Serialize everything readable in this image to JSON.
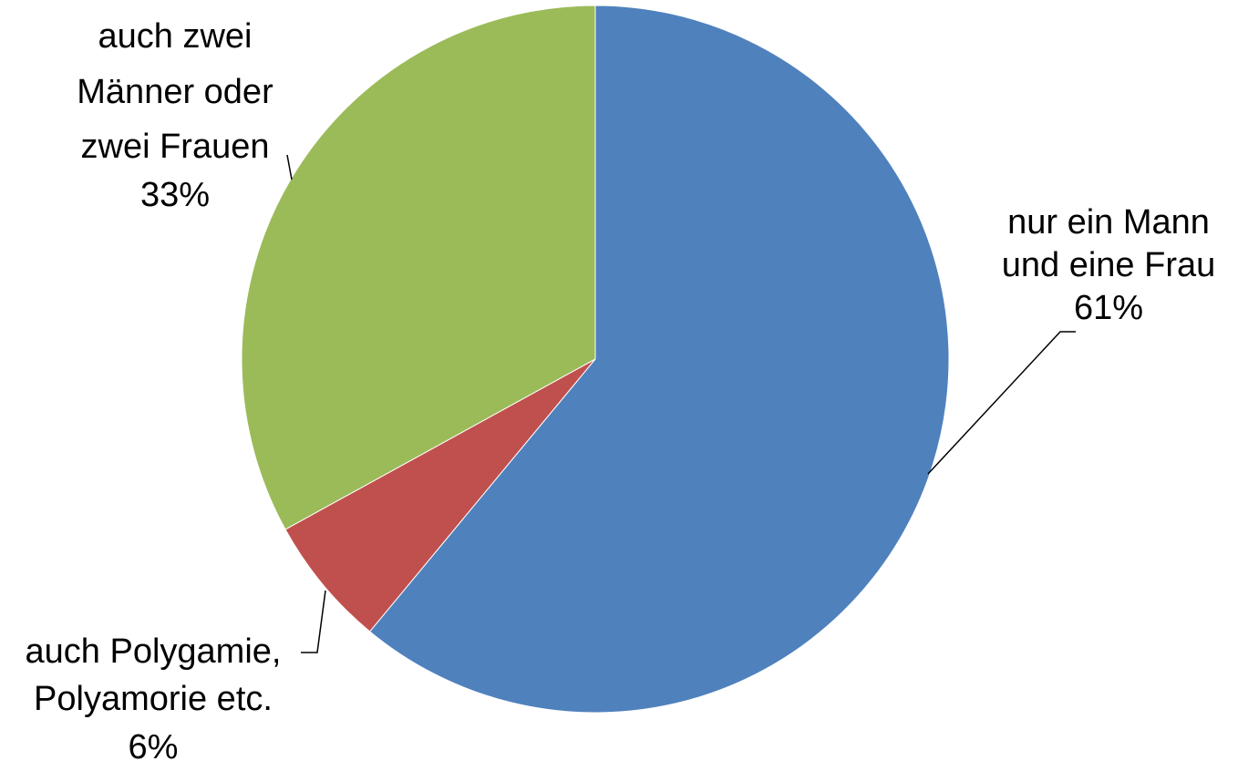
{
  "chart_data": {
    "type": "pie",
    "slices": [
      {
        "label_lines": [
          "nur ein Mann",
          "und eine Frau"
        ],
        "value": 61,
        "value_label": "61%",
        "color": "#4F81BD"
      },
      {
        "label_lines": [
          "auch Polygamie,",
          "Polyamorie etc."
        ],
        "value": 6,
        "value_label": "6%",
        "color": "#C0504D"
      },
      {
        "label_lines": [
          "auch zwei",
          "Männer oder",
          "zwei Frauen"
        ],
        "value": 33,
        "value_label": "33%",
        "color": "#9BBB59"
      }
    ],
    "start": "12 o'clock",
    "direction": "clockwise",
    "legend": "none",
    "data_labels": "outside with leader lines"
  }
}
